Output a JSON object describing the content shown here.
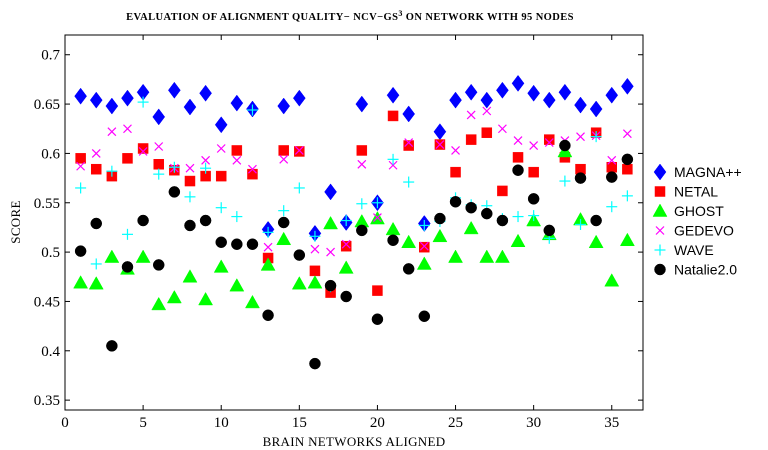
{
  "chart_data": {
    "type": "scatter",
    "title": "EVALUATION OF ALIGNMENT QUALITY− NCV−GS",
    "title_superscript": "3",
    "title_suffix": " ON NETWORK WITH 95 NODES",
    "xlabel": "BRAIN NETWORKS ALIGNED",
    "ylabel": "SCORE",
    "xlim": [
      0,
      37
    ],
    "ylim": [
      0.34,
      0.72
    ],
    "xticks": [
      0,
      5,
      10,
      15,
      20,
      25,
      30,
      35
    ],
    "yticks": [
      0.35,
      0.4,
      0.45,
      0.5,
      0.55,
      0.6,
      0.65,
      0.7
    ],
    "grid": false,
    "legend_position": "right",
    "x": [
      1,
      2,
      3,
      4,
      5,
      6,
      7,
      8,
      9,
      10,
      11,
      12,
      13,
      14,
      15,
      16,
      17,
      18,
      19,
      20,
      21,
      22,
      23,
      24,
      25,
      26,
      27,
      28,
      29,
      30,
      31,
      32,
      33,
      34,
      35,
      36
    ],
    "series": [
      {
        "name": "MAGNA++",
        "marker": "diamond",
        "color": "#0000ff",
        "values": [
          0.658,
          0.654,
          0.648,
          0.656,
          0.662,
          0.637,
          0.664,
          0.647,
          0.661,
          0.629,
          0.651,
          0.645,
          0.523,
          0.648,
          0.656,
          0.519,
          0.561,
          0.53,
          0.65,
          0.55,
          0.659,
          0.64,
          0.529,
          0.622,
          0.654,
          0.662,
          0.654,
          0.664,
          0.671,
          0.661,
          0.654,
          0.662,
          0.649,
          0.645,
          0.659,
          0.668
        ]
      },
      {
        "name": "NETAL",
        "marker": "square",
        "color": "#ff0000",
        "values": [
          0.595,
          0.584,
          0.577,
          0.595,
          0.605,
          0.589,
          0.583,
          0.572,
          0.577,
          0.577,
          0.603,
          0.579,
          0.494,
          0.603,
          0.602,
          0.481,
          0.459,
          0.506,
          0.603,
          0.461,
          0.638,
          0.608,
          0.505,
          0.609,
          0.581,
          0.614,
          0.621,
          0.562,
          0.596,
          0.581,
          0.614,
          0.596,
          0.584,
          0.621,
          0.586,
          0.584
        ]
      },
      {
        "name": "GHOST",
        "marker": "triangle",
        "color": "#00ff00",
        "values": [
          0.469,
          0.468,
          0.495,
          0.483,
          0.495,
          0.447,
          0.454,
          0.475,
          0.452,
          0.485,
          0.466,
          0.449,
          0.487,
          0.513,
          0.468,
          0.469,
          0.529,
          0.484,
          0.531,
          0.534,
          0.523,
          0.51,
          0.488,
          0.516,
          0.495,
          0.524,
          0.495,
          0.495,
          0.511,
          0.532,
          0.518,
          0.602,
          0.533,
          0.51,
          0.471,
          0.512
        ]
      },
      {
        "name": "GEDEVO",
        "marker": "x",
        "color": "#ff00ff",
        "values": [
          0.587,
          0.6,
          0.622,
          0.625,
          0.602,
          0.607,
          0.585,
          0.585,
          0.593,
          0.605,
          0.593,
          0.584,
          0.505,
          0.594,
          0.603,
          0.503,
          0.5,
          0.508,
          0.589,
          0.535,
          0.588,
          0.611,
          0.506,
          0.609,
          0.603,
          0.639,
          0.643,
          0.625,
          0.613,
          0.608,
          0.611,
          0.613,
          0.617,
          0.618,
          0.593,
          0.62
        ]
      },
      {
        "name": "WAVE",
        "marker": "plus",
        "color": "#00ffff",
        "values": [
          0.565,
          0.488,
          0.582,
          0.518,
          0.652,
          0.579,
          0.586,
          0.556,
          0.585,
          0.545,
          0.536,
          0.644,
          0.52,
          0.542,
          0.565,
          0.516,
          0.465,
          0.532,
          0.549,
          0.55,
          0.594,
          0.571,
          0.527,
          0.531,
          0.555,
          0.548,
          0.547,
          0.534,
          0.536,
          0.537,
          0.514,
          0.572,
          0.528,
          0.617,
          0.546,
          0.557
        ]
      },
      {
        "name": "Natalie2.0",
        "marker": "circle",
        "color": "#000000",
        "values": [
          0.501,
          0.529,
          0.405,
          0.485,
          0.532,
          0.487,
          0.561,
          0.527,
          0.532,
          0.51,
          0.508,
          0.508,
          0.436,
          0.53,
          0.497,
          0.387,
          0.466,
          0.455,
          0.522,
          0.432,
          0.512,
          0.483,
          0.435,
          0.534,
          0.551,
          0.545,
          0.539,
          0.532,
          0.583,
          0.554,
          0.522,
          0.608,
          0.575,
          0.532,
          0.576,
          0.594
        ]
      }
    ]
  }
}
